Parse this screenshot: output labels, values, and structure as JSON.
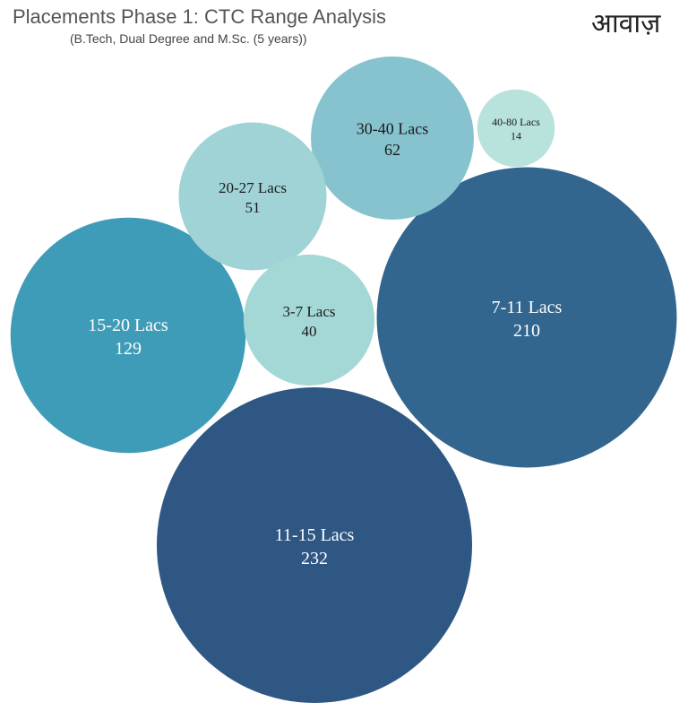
{
  "header": {
    "title": "Placements Phase 1: CTC Range Analysis",
    "subtitle": "(B.Tech, Dual Degree and M.Sc. (5 years))",
    "logo": "आवाज़"
  },
  "chart_data": {
    "type": "bubble",
    "title": "Placements Phase 1: CTC Range Analysis",
    "subtitle": "(B.Tech, Dual Degree and M.Sc. (5 years))",
    "bubbles": [
      {
        "label": "11-15 Lacs",
        "value": 232,
        "color": "#2e5784",
        "text_color": "#ffffff"
      },
      {
        "label": "7-11 Lacs",
        "value": 210,
        "color": "#32668f",
        "text_color": "#ffffff"
      },
      {
        "label": "15-20 Lacs",
        "value": 129,
        "color": "#3f9cb8",
        "text_color": "#ffffff"
      },
      {
        "label": "30-40 Lacs",
        "value": 62,
        "color": "#86c3ce",
        "text_color": "#1a1a1a"
      },
      {
        "label": "20-27 Lacs",
        "value": 51,
        "color": "#9fd3d6",
        "text_color": "#1a1a1a"
      },
      {
        "label": "3-7 Lacs",
        "value": 40,
        "color": "#a4d8d6",
        "text_color": "#1a1a1a"
      },
      {
        "label": "40-80 Lacs",
        "value": 14,
        "color": "#b8e2dc",
        "text_color": "#1a1a1a"
      }
    ]
  }
}
